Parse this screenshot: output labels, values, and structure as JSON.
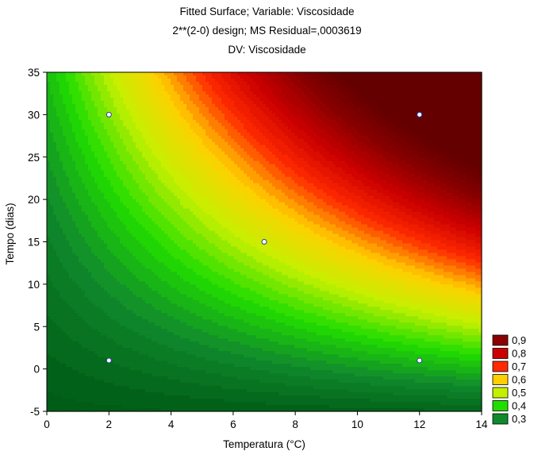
{
  "chart_data": {
    "type": "heatmap",
    "subtype": "fitted-surface-contour",
    "title_lines": [
      "Fitted Surface; Variable: Viscosidade",
      "2**(2-0) design; MS Residual=,0003619",
      "DV: Viscosidade"
    ],
    "xlabel": "Temperatura (°C)",
    "ylabel": "Tempo (dias)",
    "xlim": [
      0,
      14
    ],
    "ylim": [
      -5,
      35
    ],
    "x_ticks": [
      "0",
      "2",
      "4",
      "6",
      "8",
      "10",
      "12",
      "14"
    ],
    "y_ticks": [
      "-5",
      "0",
      "5",
      "10",
      "15",
      "20",
      "25",
      "30",
      "35"
    ],
    "design_points": [
      {
        "x": 2,
        "y": 30
      },
      {
        "x": 12,
        "y": 30
      },
      {
        "x": 7,
        "y": 15
      },
      {
        "x": 2,
        "y": 1
      },
      {
        "x": 12,
        "y": 1
      }
    ],
    "legend": {
      "placement": "right-bottom",
      "entries": [
        {
          "label": "0,9",
          "color": "#8b0000"
        },
        {
          "label": "0,8",
          "color": "#cc0000"
        },
        {
          "label": "0,7",
          "color": "#ff2a00"
        },
        {
          "label": "0,6",
          "color": "#ffd000"
        },
        {
          "label": "0,5",
          "color": "#c4f000"
        },
        {
          "label": "0,4",
          "color": "#22dd00"
        },
        {
          "label": "0,3",
          "color": "#108a2c"
        }
      ]
    }
  }
}
